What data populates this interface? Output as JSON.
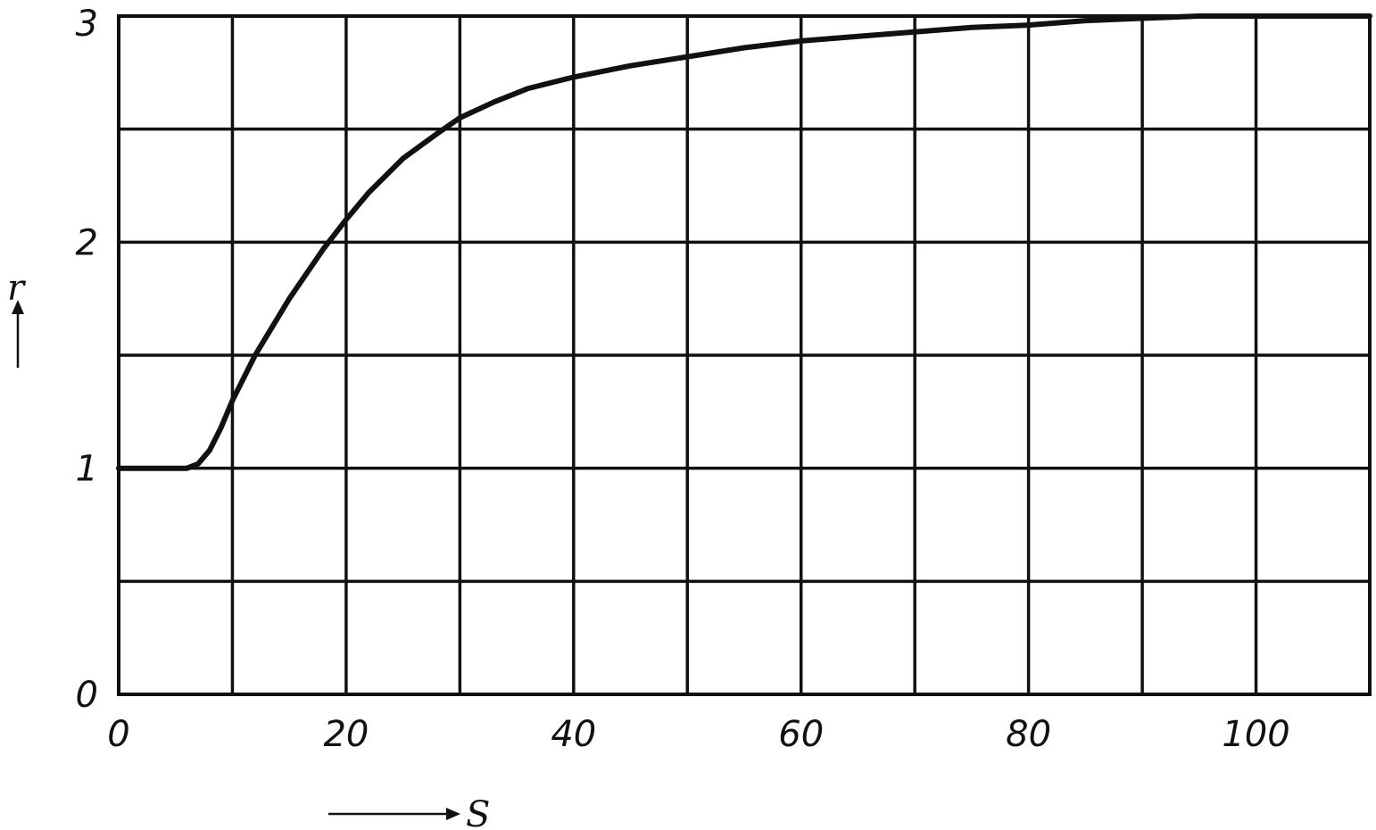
{
  "chart_data": {
    "type": "line",
    "title": "",
    "xlabel": "S",
    "ylabel": "r",
    "xlim": [
      0,
      110
    ],
    "ylim": [
      0,
      3
    ],
    "x_grid_step": 10,
    "y_grid_step": 0.5,
    "grid": true,
    "x_tick_values": [
      0,
      20,
      40,
      60,
      80,
      100
    ],
    "x_tick_labels": [
      "0",
      "20",
      "40",
      "60",
      "80",
      "100"
    ],
    "y_tick_values": [
      0,
      1,
      2,
      3
    ],
    "y_tick_labels": [
      "0",
      "1",
      "2",
      "3"
    ],
    "series": [
      {
        "x": [
          0,
          3,
          6,
          7,
          8,
          9,
          10,
          12,
          15,
          18,
          20,
          22,
          25,
          28,
          30,
          33,
          36,
          40,
          45,
          50,
          55,
          60,
          65,
          70,
          75,
          80,
          85,
          90,
          95,
          100,
          110
        ],
        "y": [
          1.0,
          1.0,
          1.0,
          1.02,
          1.08,
          1.18,
          1.3,
          1.5,
          1.75,
          1.97,
          2.1,
          2.22,
          2.37,
          2.48,
          2.55,
          2.62,
          2.68,
          2.73,
          2.78,
          2.82,
          2.86,
          2.89,
          2.91,
          2.93,
          2.95,
          2.96,
          2.98,
          2.99,
          3.0,
          3.0,
          3.0
        ]
      }
    ]
  }
}
